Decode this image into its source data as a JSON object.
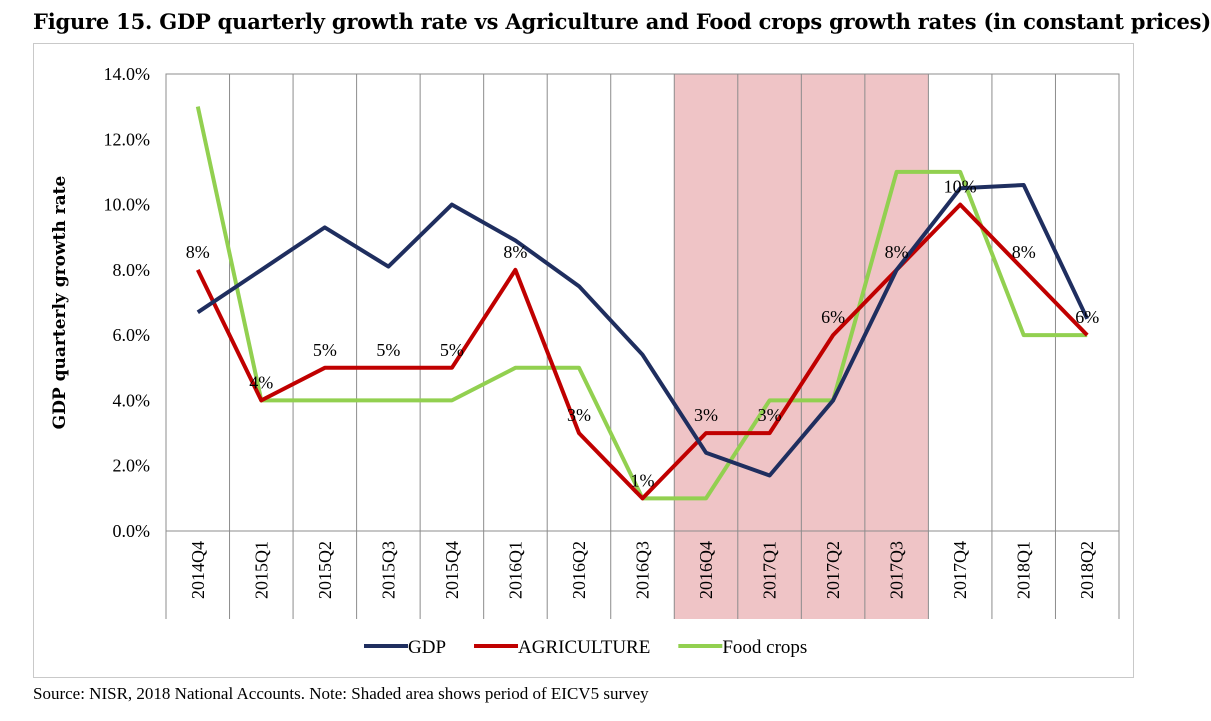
{
  "figure": {
    "title": "Figure 15. GDP quarterly growth rate vs Agriculture and Food crops growth rates (in constant prices)",
    "source_note": "Source: NISR, 2018 National Accounts. Note: Shaded area shows period of EICV5 survey"
  },
  "chart_data": {
    "type": "line",
    "categories": [
      "2014Q4",
      "2015Q1",
      "2015Q2",
      "2015Q3",
      "2015Q4",
      "2016Q1",
      "2016Q2",
      "2016Q3",
      "2016Q4",
      "2017Q1",
      "2017Q2",
      "2017Q3",
      "2017Q4",
      "2018Q1",
      "2018Q2"
    ],
    "ylabel": "GDP quarterly growth rate",
    "ylim": [
      0,
      14
    ],
    "yticks": [
      0,
      2,
      4,
      6,
      8,
      10,
      12,
      14
    ],
    "ytick_labels": [
      "0.0%",
      "2.0%",
      "4.0%",
      "6.0%",
      "8.0%",
      "10.0%",
      "12.0%",
      "14.0%"
    ],
    "grid": "vertical",
    "legend_position": "bottom",
    "shaded_range": {
      "from": "2016Q4",
      "to": "2017Q3",
      "color": "#efc4c6"
    },
    "series": [
      {
        "name": "GDP",
        "color": "#1f2e5f",
        "values": [
          6.7,
          8.0,
          9.3,
          8.1,
          10.0,
          8.9,
          7.5,
          5.4,
          2.4,
          1.7,
          4.0,
          8.0,
          10.5,
          10.6,
          6.5
        ]
      },
      {
        "name": "AGRICULTURE",
        "color": "#c00000",
        "values": [
          8,
          4,
          5,
          5,
          5,
          8,
          3,
          1,
          3,
          3,
          6,
          8,
          10,
          8,
          6
        ]
      },
      {
        "name": "Food crops",
        "color": "#92d050",
        "values": [
          13,
          4,
          4,
          4,
          4,
          5,
          5,
          1,
          1,
          4,
          4,
          11,
          11,
          6,
          6
        ]
      }
    ],
    "data_labels": {
      "series": "AGRICULTURE",
      "labels": [
        "8%",
        "4%",
        "5%",
        "5%",
        "5%",
        "8%",
        "3%",
        "1%",
        "3%",
        "3%",
        "6%",
        "8%",
        "10%",
        "8%",
        "6%"
      ]
    }
  }
}
